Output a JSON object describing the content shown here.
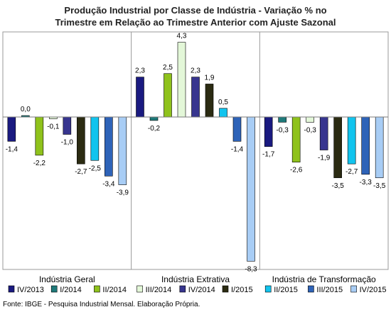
{
  "chart_data": {
    "type": "bar",
    "title_lines": [
      "Produção Industrial por Classe de Indústria - Variação % no",
      "Trimestre em Relação ao Trimestre Anterior com Ajuste Sazonal"
    ],
    "categories": [
      "Indústria Geral",
      "Indústria Extrativa",
      "Indústria de Transformação"
    ],
    "series": [
      {
        "name": "IV/2013",
        "color": "#1a1a80",
        "values": [
          -1.4,
          2.3,
          -1.7
        ],
        "labels": [
          "-1,4",
          "2,3",
          "-1,7"
        ]
      },
      {
        "name": "I/2014",
        "color": "#1f7a7a",
        "values": [
          0.0,
          -0.2,
          -0.3
        ],
        "labels": [
          "0,0",
          "-0,2",
          "-0,3"
        ]
      },
      {
        "name": "II/2014",
        "color": "#8fc21c",
        "values": [
          -2.2,
          2.5,
          -2.6
        ],
        "labels": [
          "-2,2",
          "2,5",
          "-2,6"
        ]
      },
      {
        "name": "III/2014",
        "color": "#e3f7d8",
        "values": [
          -0.1,
          4.3,
          -0.3
        ],
        "labels": [
          "-0,1",
          "4,3",
          "-0,3"
        ]
      },
      {
        "name": "IV/2014",
        "color": "#37358f",
        "values": [
          -1.0,
          2.3,
          -1.9
        ],
        "labels": [
          "-1,0",
          "2,3",
          "-1,9"
        ]
      },
      {
        "name": "I/2015",
        "color": "#2b2b12",
        "values": [
          -2.7,
          1.9,
          -3.5
        ],
        "labels": [
          "-2,7",
          "1,9",
          "-3,5"
        ]
      },
      {
        "name": "II/2015",
        "color": "#12c4ee",
        "values": [
          -2.5,
          0.5,
          -2.7
        ],
        "labels": [
          "-2,5",
          "0,5",
          "-2,7"
        ]
      },
      {
        "name": "III/2015",
        "color": "#2e63b8",
        "values": [
          -3.4,
          -1.4,
          -3.3
        ],
        "labels": [
          "-3,4",
          "-1,4",
          "-3,3"
        ]
      },
      {
        "name": "IV/2015",
        "color": "#a8cdf5",
        "values": [
          -3.9,
          -8.3,
          -3.5
        ],
        "labels": [
          "-3,9",
          "-8,3",
          "-3,5"
        ]
      }
    ],
    "ylim": [
      -8.9,
      4.9
    ],
    "grid": false,
    "legend": "bottom"
  },
  "source": "Fonte: IBGE - Pesquisa Industrial Mensal. Elaboração Própria."
}
